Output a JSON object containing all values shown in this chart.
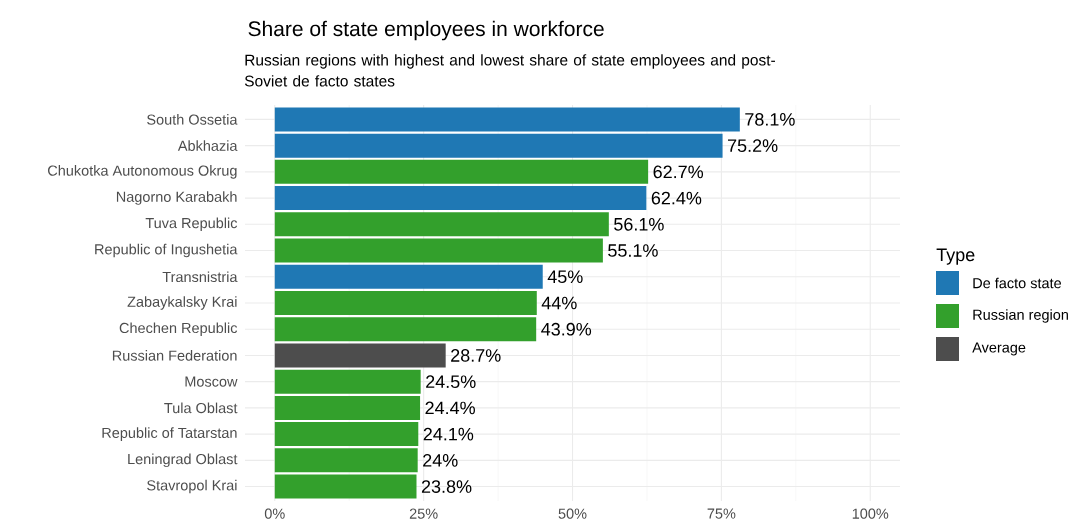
{
  "chart_data": {
    "type": "bar",
    "orientation": "horizontal",
    "title": "Share of state employees in workforce",
    "subtitle": "Russian regions with highest and lowest share of state employees and post-Soviet de facto states",
    "legend_title": "Type",
    "legend": "right",
    "grid": true,
    "categories": [
      "South Ossetia",
      "Abkhazia",
      "Chukotka Autonomous Okrug",
      "Nagorno Karabakh",
      "Tuva Republic",
      "Republic of Ingushetia",
      "Transnistria",
      "Zabaykalsky Krai",
      "Chechen Republic",
      "Russian Federation",
      "Moscow",
      "Tula Oblast",
      "Republic of Tatarstan",
      "Leningrad Oblast",
      "Stavropol Krai"
    ],
    "xlim": [
      -5,
      105
    ],
    "xticks": [
      {
        "value": 0,
        "label": "0%"
      },
      {
        "value": 25,
        "label": "25%"
      },
      {
        "value": 50,
        "label": "50%"
      },
      {
        "value": 75,
        "label": "75%"
      },
      {
        "value": 100,
        "label": "100%"
      }
    ],
    "series": [
      {
        "name": "De facto state",
        "color": "#1f78b4",
        "values": [
          78.1,
          75.2,
          null,
          62.4,
          null,
          null,
          45,
          null,
          null,
          null,
          null,
          null,
          null,
          null,
          null
        ],
        "value_labels": [
          "78.1%",
          "75.2%",
          null,
          "62.4%",
          null,
          null,
          "45%",
          null,
          null,
          null,
          null,
          null,
          null,
          null,
          null
        ]
      },
      {
        "name": "Russian region",
        "color": "#33a02c",
        "values": [
          null,
          null,
          62.7,
          null,
          56.1,
          55.1,
          null,
          44,
          43.9,
          null,
          24.5,
          24.4,
          24.1,
          24,
          23.8
        ],
        "value_labels": [
          null,
          null,
          "62.7%",
          null,
          "56.1%",
          "55.1%",
          null,
          "44%",
          "43.9%",
          null,
          "24.5%",
          "24.4%",
          "24.1%",
          "24%",
          "23.8%"
        ]
      },
      {
        "name": "Average",
        "color": "#4d4d4d",
        "values": [
          null,
          null,
          null,
          null,
          null,
          null,
          null,
          null,
          null,
          28.7,
          null,
          null,
          null,
          null,
          null
        ],
        "value_labels": [
          null,
          null,
          null,
          null,
          null,
          null,
          null,
          null,
          null,
          "28.7%",
          null,
          null,
          null,
          null,
          null
        ]
      }
    ]
  }
}
